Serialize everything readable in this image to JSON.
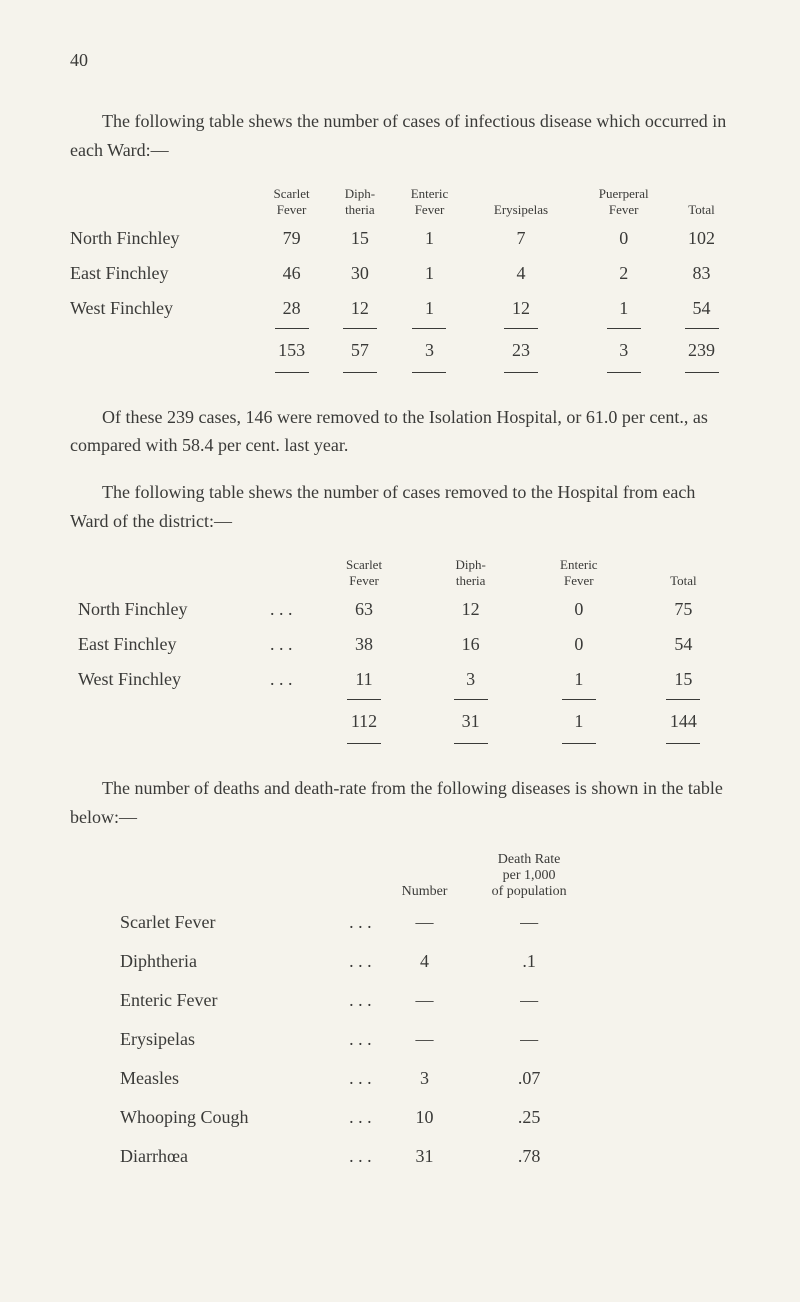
{
  "page_number": "40",
  "para1": "The following table shews the number of cases of infectious disease which occurred in each Ward:—",
  "table1": {
    "headers": {
      "scarlet": "Scarlet\nFever",
      "diph": "Diph-\ntheria",
      "enteric": "Enteric\nFever",
      "erysip": "Erysipelas",
      "puerp": "Puerperal\nFever",
      "total": "Total"
    },
    "rows": [
      {
        "label": "North Finchley",
        "scarlet": "79",
        "diph": "15",
        "enteric": "1",
        "erysip": "7",
        "puerp": "0",
        "total": "102"
      },
      {
        "label": "East Finchley",
        "scarlet": "46",
        "diph": "30",
        "enteric": "1",
        "erysip": "4",
        "puerp": "2",
        "total": "83"
      },
      {
        "label": "West Finchley",
        "scarlet": "28",
        "diph": "12",
        "enteric": "1",
        "erysip": "12",
        "puerp": "1",
        "total": "54"
      }
    ],
    "totals": {
      "scarlet": "153",
      "diph": "57",
      "enteric": "3",
      "erysip": "23",
      "puerp": "3",
      "total": "239"
    }
  },
  "para2": "Of these 239 cases, 146 were removed to the Isolation Hospital, or 61.0 per cent., as compared with 58.4 per cent. last year.",
  "para3": "The following table shews the number of cases removed to the Hospital from each Ward of the district:—",
  "table2": {
    "headers": {
      "scarlet": "Scarlet\nFever",
      "diph": "Diph-\ntheria",
      "enteric": "Enteric\nFever",
      "total": "Total"
    },
    "rows": [
      {
        "label": "North Finchley",
        "dots": ". . .",
        "scarlet": "63",
        "diph": "12",
        "enteric": "0",
        "total": "75"
      },
      {
        "label": "East Finchley",
        "dots": ". . .",
        "scarlet": "38",
        "diph": "16",
        "enteric": "0",
        "total": "54"
      },
      {
        "label": "West Finchley",
        "dots": ". . .",
        "scarlet": "11",
        "diph": "3",
        "enteric": "1",
        "total": "15"
      }
    ],
    "totals": {
      "scarlet": "112",
      "diph": "31",
      "enteric": "1",
      "total": "144"
    }
  },
  "para4": "The number of deaths and death-rate from the following diseases is shown in the table below:—",
  "table3": {
    "headers": {
      "number": "Number",
      "rate": "Death Rate\nper 1,000\nof population"
    },
    "rows": [
      {
        "label": "Scarlet Fever",
        "dots": ". . .",
        "number": "—",
        "rate": "—"
      },
      {
        "label": "Diphtheria",
        "dots": ". . .",
        "number": "4",
        "rate": ".1"
      },
      {
        "label": "Enteric Fever",
        "dots": ". . .",
        "number": "—",
        "rate": "—"
      },
      {
        "label": "Erysipelas",
        "dots": ". . .",
        "number": "—",
        "rate": "—"
      },
      {
        "label": "Measles",
        "dots": ". . .",
        "number": "3",
        "rate": ".07"
      },
      {
        "label": "Whooping Cough",
        "dots": ". . .",
        "number": "10",
        "rate": ".25"
      },
      {
        "label": "Diarrhœa",
        "dots": ". . .",
        "number": "31",
        "rate": ".78"
      }
    ]
  }
}
